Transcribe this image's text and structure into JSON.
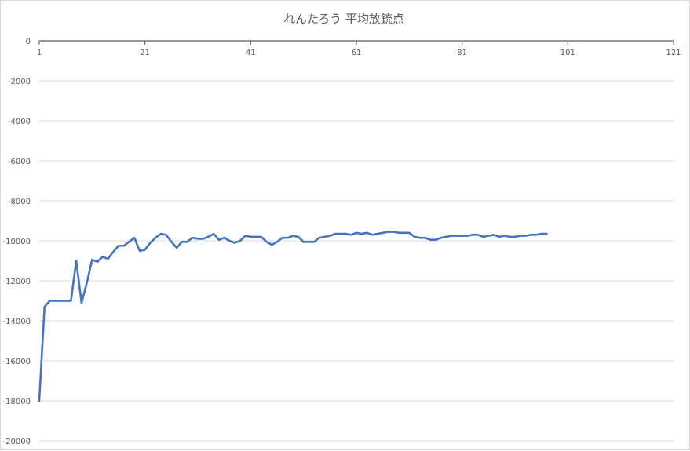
{
  "chart_data": {
    "type": "line",
    "title": "れんたろう 平均放銃点",
    "xlabel": "",
    "ylabel": "",
    "xlim": [
      1,
      121
    ],
    "ylim": [
      -20000,
      0
    ],
    "x_ticks": [
      "1",
      "21",
      "41",
      "61",
      "81",
      "101",
      "121"
    ],
    "y_ticks": [
      "0",
      "-2000",
      "-4000",
      "-6000",
      "-8000",
      "-10000",
      "-12000",
      "-14000",
      "-16000",
      "-18000",
      "-20000"
    ],
    "grid": true,
    "legend": "none",
    "line_color": "#4472c4",
    "series": [
      {
        "x": [
          1,
          2,
          3,
          4,
          5,
          6,
          7,
          8,
          9,
          10,
          11,
          12,
          13,
          14,
          15,
          16,
          17,
          18,
          19,
          20,
          21,
          22,
          23,
          24,
          25,
          26,
          27,
          28,
          29,
          30,
          31,
          32,
          33,
          34,
          35,
          36,
          37,
          38,
          39,
          40,
          41,
          42,
          43,
          44,
          45,
          46,
          47,
          48,
          49,
          50,
          51,
          52,
          53,
          54,
          55,
          56,
          57,
          58,
          59,
          60,
          61,
          62,
          63,
          64,
          65,
          66,
          67,
          68,
          69,
          70,
          71,
          72,
          73,
          74,
          75,
          76,
          77,
          78,
          79,
          80,
          81,
          82,
          83,
          84,
          85,
          86,
          87,
          88,
          89,
          90,
          91,
          92,
          93,
          94,
          95,
          96,
          97
        ],
        "values": [
          -18000,
          -13300,
          -13000,
          -13000,
          -13000,
          -13000,
          -13000,
          -11000,
          -13100,
          -12100,
          -10950,
          -11050,
          -10800,
          -10900,
          -10550,
          -10250,
          -10250,
          -10050,
          -9850,
          -10500,
          -10450,
          -10100,
          -9850,
          -9650,
          -9700,
          -10050,
          -10350,
          -10050,
          -10050,
          -9850,
          -9900,
          -9900,
          -9800,
          -9650,
          -9950,
          -9850,
          -10000,
          -10100,
          -10000,
          -9750,
          -9800,
          -9800,
          -9800,
          -10050,
          -10200,
          -10050,
          -9850,
          -9850,
          -9750,
          -9800,
          -10050,
          -10050,
          -10050,
          -9850,
          -9800,
          -9750,
          -9650,
          -9650,
          -9650,
          -9700,
          -9600,
          -9650,
          -9600,
          -9700,
          -9650,
          -9600,
          -9550,
          -9550,
          -9600,
          -9600,
          -9600,
          -9800,
          -9850,
          -9850,
          -9950,
          -9950,
          -9850,
          -9800,
          -9750,
          -9750,
          -9750,
          -9750,
          -9700,
          -9700,
          -9800,
          -9750,
          -9700,
          -9800,
          -9750,
          -9800,
          -9800,
          -9750,
          -9750,
          -9700,
          -9700,
          -9650,
          -9650
        ]
      }
    ]
  }
}
